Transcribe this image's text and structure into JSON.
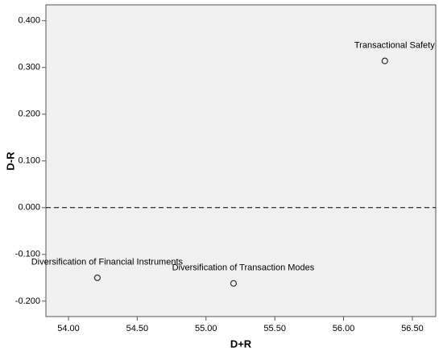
{
  "chart_data": {
    "type": "scatter",
    "x_label": "D+R",
    "y_label": "D-R",
    "x": [
      56.3,
      54.21,
      55.2
    ],
    "values": [
      0.314,
      -0.15,
      -0.162
    ],
    "labels": [
      "Transactional Safety",
      "Diversification of Financial Instruments",
      "Diversification of Transaction Modes"
    ],
    "color": "#333333",
    "reference_line": 0,
    "xlim": [
      53.836,
      56.67
    ],
    "ylim": [
      -0.233,
      0.434
    ],
    "xticks": [
      {
        "value": 54,
        "label": "54.00"
      },
      {
        "value": 54.5,
        "label": "54.50"
      },
      {
        "value": 55,
        "label": "55.00"
      },
      {
        "value": 55.5,
        "label": "55.50"
      },
      {
        "value": 56,
        "label": "56.00"
      },
      {
        "value": 56.5,
        "label": "56.50"
      }
    ],
    "yticks": [
      {
        "value": -0.2,
        "label": "-0.200"
      },
      {
        "value": -0.1,
        "label": "-0.100"
      },
      {
        "value": 0,
        "label": "0.000"
      },
      {
        "value": 0.1,
        "label": "0.100"
      },
      {
        "value": 0.2,
        "label": "0.200"
      },
      {
        "value": 0.3,
        "label": "0.300"
      },
      {
        "value": 0.4,
        "label": "0.400"
      }
    ]
  }
}
